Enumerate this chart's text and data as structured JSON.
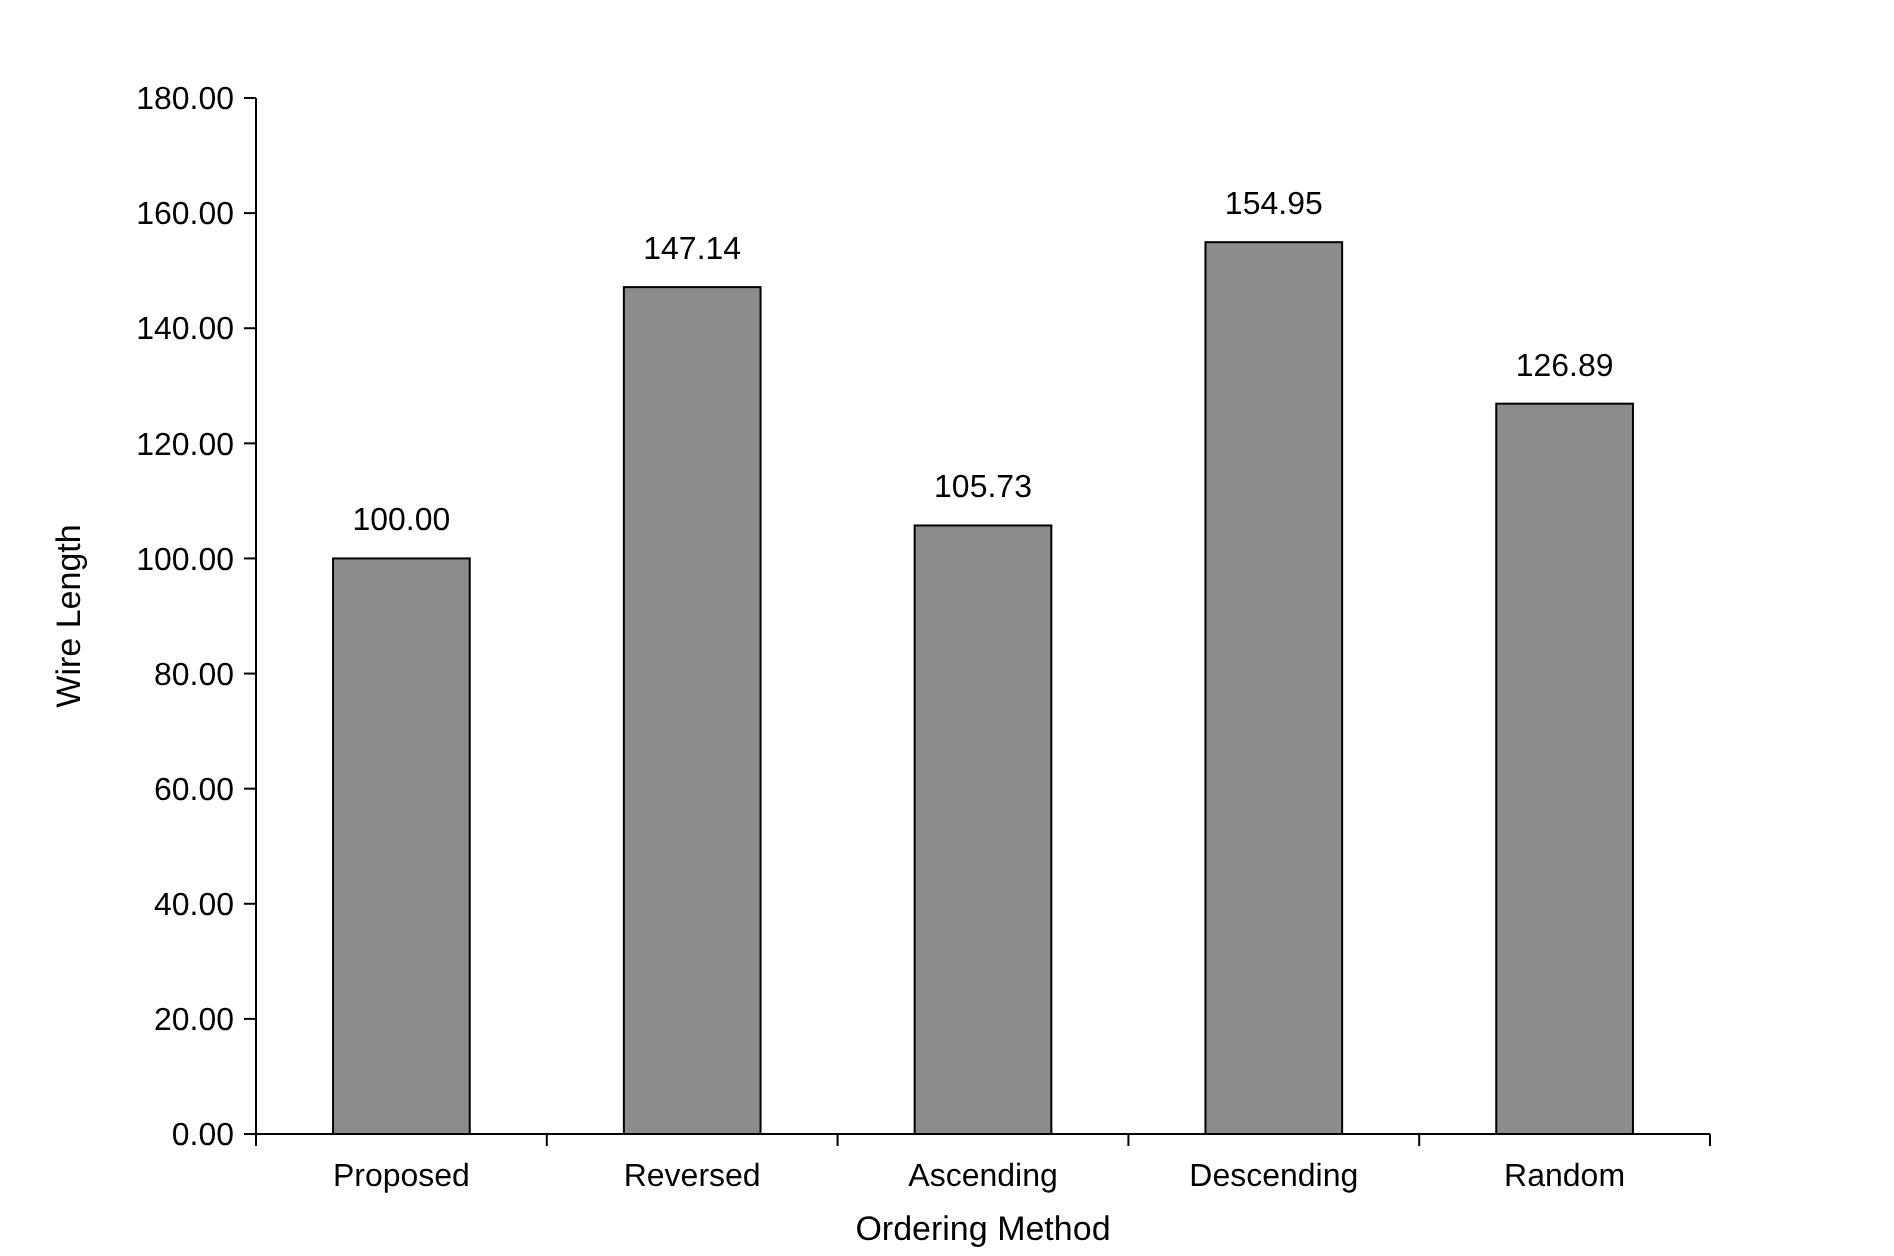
{
  "chart_data": {
    "type": "bar",
    "xlabel": "Ordering Method",
    "ylabel": "Wire Length",
    "categories": [
      "Proposed",
      "Reversed",
      "Ascending",
      "Descending",
      "Random"
    ],
    "values": [
      100,
      147.14,
      105.73,
      154.95,
      126.89
    ],
    "value_labels": [
      "100.00",
      "147.14",
      "105.73",
      "154.95",
      "126.89"
    ],
    "color": "#8c8c8c",
    "ylim": [
      0,
      180
    ],
    "yticks": [
      {
        "value": 0,
        "label": "0.00"
      },
      {
        "value": 20,
        "label": "20.00"
      },
      {
        "value": 40,
        "label": "40.00"
      },
      {
        "value": 60,
        "label": "60.00"
      },
      {
        "value": 80,
        "label": "80.00"
      },
      {
        "value": 100,
        "label": "100.00"
      },
      {
        "value": 120,
        "label": "120.00"
      },
      {
        "value": 140,
        "label": "140.00"
      },
      {
        "value": 160,
        "label": "160.00"
      },
      {
        "value": 180,
        "label": "180.00"
      }
    ],
    "grid": false
  }
}
